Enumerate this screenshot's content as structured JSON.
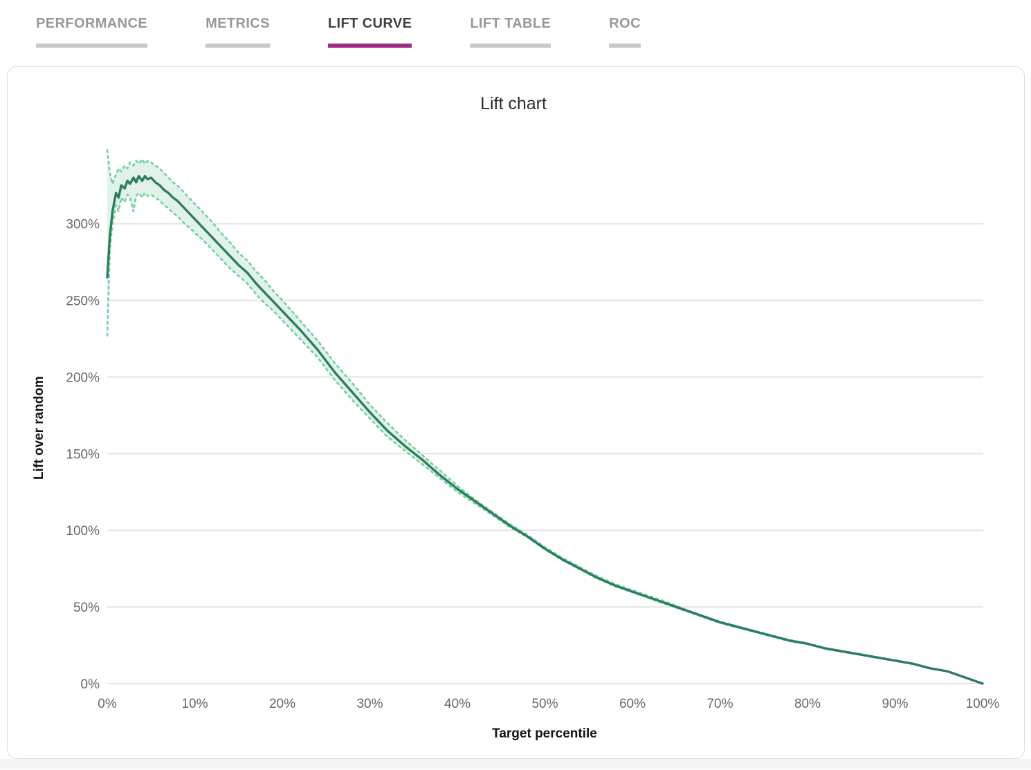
{
  "tabs": [
    {
      "label": "PERFORMANCE",
      "active": false
    },
    {
      "label": "METRICS",
      "active": false
    },
    {
      "label": "LIFT CURVE",
      "active": true
    },
    {
      "label": "LIFT TABLE",
      "active": false
    },
    {
      "label": "ROC",
      "active": false
    }
  ],
  "colors": {
    "active_tab_underline": "#9e2d82",
    "inactive_tab_underline": "#c9c9cc",
    "active_tab_text": "#3e4046",
    "inactive_tab_text": "#97979d",
    "lift_line": "#2e7d5a",
    "band_edge": "#79d2a6",
    "band_fill": "#e1f3e9",
    "gridline": "#e4e4e4"
  },
  "chart_data": {
    "type": "line",
    "title": "Lift chart",
    "xlabel": "Target percentile",
    "ylabel": "Lift over random",
    "xlim": [
      0,
      100
    ],
    "ylim": [
      0,
      350
    ],
    "grid": "horizontal",
    "legend": "none",
    "x_ticks": [
      "0%",
      "10%",
      "20%",
      "30%",
      "40%",
      "50%",
      "60%",
      "70%",
      "80%",
      "90%",
      "100%"
    ],
    "x_tick_values": [
      0,
      10,
      20,
      30,
      40,
      50,
      60,
      70,
      80,
      90,
      100
    ],
    "y_ticks": [
      "0%",
      "50%",
      "100%",
      "150%",
      "200%",
      "250%",
      "300%"
    ],
    "y_tick_values": [
      0,
      50,
      100,
      150,
      200,
      250,
      300
    ],
    "x": [
      0,
      0.3,
      0.6,
      1,
      1.3,
      1.6,
      2,
      2.3,
      2.6,
      3,
      3.3,
      3.6,
      4,
      4.3,
      4.6,
      5,
      5.5,
      6,
      6.5,
      7,
      7.5,
      8,
      8.5,
      9,
      9.5,
      10,
      11,
      12,
      13,
      14,
      15,
      16,
      17,
      18,
      19,
      20,
      22,
      24,
      26,
      28,
      30,
      32,
      34,
      36,
      38,
      40,
      42,
      44,
      46,
      48,
      50,
      52,
      54,
      56,
      58,
      60,
      62,
      64,
      66,
      68,
      70,
      72,
      74,
      76,
      78,
      80,
      82,
      84,
      86,
      88,
      90,
      92,
      94,
      96,
      98,
      100
    ],
    "series": [
      {
        "name": "lift over random",
        "style": "solid",
        "color": "#2e7d5a",
        "values": [
          265,
          292,
          308,
          320,
          317,
          325,
          323,
          328,
          326,
          330,
          327,
          331,
          328,
          331,
          329,
          330,
          327,
          325,
          322,
          320,
          317,
          315,
          312,
          309,
          306,
          303,
          297,
          291,
          285,
          279,
          273,
          268,
          261,
          255,
          249,
          243,
          231,
          218,
          203,
          190,
          177,
          165,
          155,
          146,
          136,
          127,
          119,
          111,
          103,
          96,
          88,
          81,
          75,
          69,
          64,
          60,
          56,
          52,
          48,
          44,
          40,
          37,
          34,
          31,
          28,
          26,
          23,
          21,
          19,
          17,
          15,
          13,
          10,
          8,
          4,
          0
        ]
      },
      {
        "name": "upper confidence bound",
        "style": "dashed",
        "color": "#79d2a6",
        "values": [
          348,
          333,
          326,
          332,
          336,
          334,
          338,
          336,
          340,
          338,
          341,
          339,
          342,
          339,
          341,
          340,
          338,
          336,
          333,
          330,
          327,
          325,
          322,
          319,
          316,
          313,
          307,
          301,
          294,
          288,
          281,
          276,
          269,
          263,
          256,
          250,
          237,
          224,
          209,
          196,
          182,
          170,
          159,
          149,
          139,
          129,
          120,
          112,
          104,
          97,
          89,
          82,
          76,
          70,
          65,
          61,
          57,
          53,
          48.5,
          44.5,
          40.5,
          37.4,
          34.4,
          31.4,
          28.4,
          26.3,
          23.3,
          21.3,
          19.2,
          17.2,
          15.2,
          13.2,
          10.2,
          8.1,
          4.1,
          0
        ]
      },
      {
        "name": "lower confidence bound",
        "style": "dashed",
        "color": "#79d2a6",
        "values": [
          227,
          284,
          300,
          312,
          308,
          317,
          314,
          319,
          317,
          308,
          318,
          320,
          317,
          320,
          318,
          319,
          317,
          315,
          312,
          310,
          307,
          305,
          302,
          299,
          297,
          294,
          289,
          283,
          277,
          271,
          266,
          261,
          254,
          248,
          243,
          237,
          225,
          213,
          198,
          185,
          173,
          161,
          152,
          143,
          134,
          125,
          117.5,
          110,
          102,
          95.5,
          87.5,
          80.5,
          74.5,
          68.5,
          63.5,
          59.5,
          55.5,
          51.5,
          47.5,
          43.5,
          39.5,
          36.6,
          33.6,
          30.6,
          27.6,
          25.7,
          22.7,
          20.7,
          18.8,
          16.8,
          14.8,
          12.8,
          9.8,
          7.9,
          3.9,
          0
        ]
      }
    ],
    "band_fill": "#e1f3e9"
  }
}
